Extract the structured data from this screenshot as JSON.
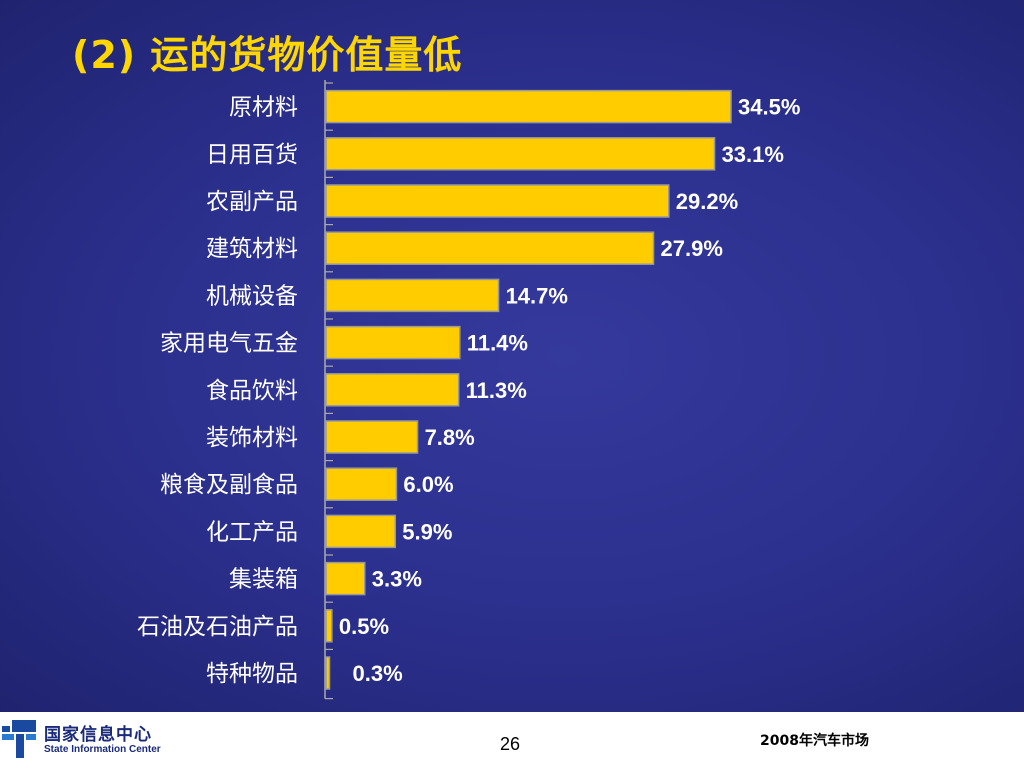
{
  "slide": {
    "title": "(2) 运的货物价值量低"
  },
  "chart_data": {
    "type": "bar",
    "orientation": "horizontal",
    "title": "(2) 运的货物价值量低",
    "categories": [
      "原材料",
      "日用百货",
      "农副产品",
      "建筑材料",
      "机械设备",
      "家用电气五金",
      "食品饮料",
      "装饰材料",
      "粮食及副食品",
      "化工产品",
      "集装箱",
      "石油及石油产品",
      "特种物品"
    ],
    "values": [
      34.5,
      33.1,
      29.2,
      27.9,
      14.7,
      11.4,
      11.3,
      7.8,
      6.0,
      5.9,
      3.3,
      0.5,
      0.3
    ],
    "value_labels": [
      "34.5%",
      "33.1%",
      "29.2%",
      "27.9%",
      "14.7%",
      "11.4%",
      "11.3%",
      "7.8%",
      "6.0%",
      "5.9%",
      "3.3%",
      "0.5%",
      "0.3%"
    ],
    "xlim": [
      0,
      35
    ],
    "bar_color": "#ffcc00",
    "label_color": "#ffffff"
  },
  "footer": {
    "org_cn": "国家信息中心",
    "org_en": "State Information Center",
    "page_number": "26",
    "doc_name": "2008年汽车市场"
  }
}
